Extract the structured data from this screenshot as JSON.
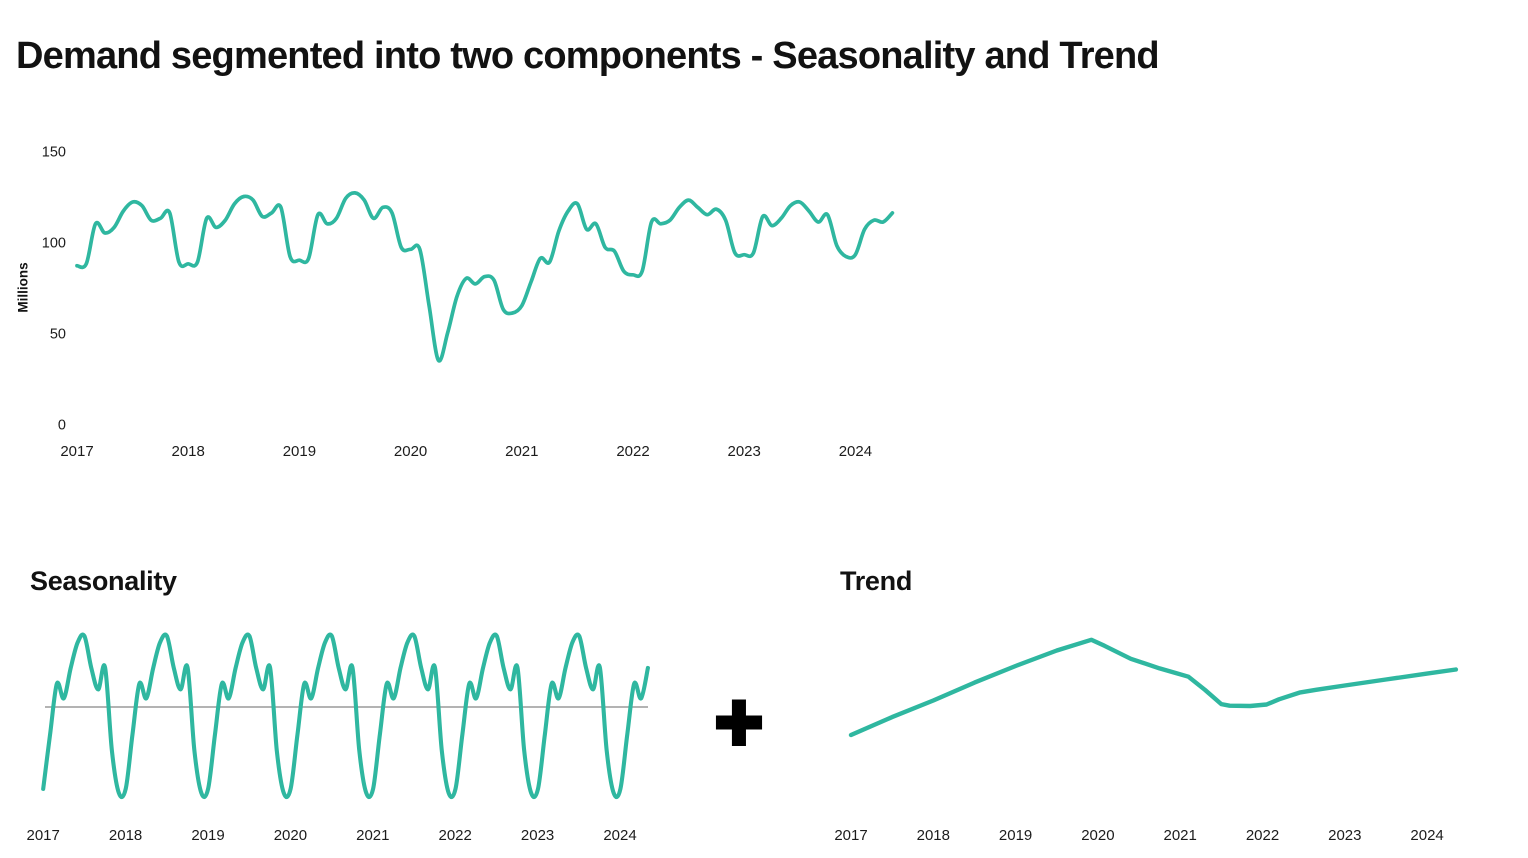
{
  "page": {
    "title": "Demand segmented into two components - Seasonality and Trend",
    "plus_sign": "+",
    "background": "#ffffff",
    "accent_color": "#2FB7A0",
    "text_color": "#121212"
  },
  "chart_data": [
    {
      "id": "demand",
      "type": "line",
      "title": "",
      "ylabel": "Millions",
      "frequency": "monthly",
      "start": "2017-01",
      "end": "2024-05",
      "ylim": [
        0,
        150
      ],
      "y_ticks": [
        0,
        50,
        100,
        150
      ],
      "x_tick_labels": [
        "2017",
        "2018",
        "2019",
        "2020",
        "2021",
        "2022",
        "2023",
        "2024"
      ],
      "grid": false,
      "legend": false,
      "line_color": "#2FB7A0",
      "values": [
        87,
        88,
        110,
        105,
        108,
        117,
        122,
        120,
        112,
        113,
        116,
        89,
        88,
        89,
        113,
        108,
        112,
        121,
        125,
        123,
        114,
        116,
        119,
        92,
        90,
        91,
        115,
        110,
        113,
        124,
        127,
        123,
        113,
        119,
        116,
        97,
        96,
        96,
        65,
        35,
        50,
        70,
        80,
        77,
        81,
        79,
        63,
        61,
        65,
        78,
        91,
        89,
        106,
        117,
        121,
        107,
        110,
        97,
        95,
        84,
        82,
        84,
        111,
        110,
        112,
        119,
        123,
        119,
        115,
        118,
        112,
        94,
        93,
        94,
        114,
        109,
        113,
        120,
        122,
        117,
        111,
        115,
        98,
        92,
        93,
        107,
        112,
        111,
        116
      ]
    },
    {
      "id": "seasonality",
      "type": "line",
      "title": "Seasonality",
      "frequency": "monthly",
      "start": "2017-01",
      "end": "2024-05",
      "n_months": 89,
      "unit": "relative seasonal deviation (no y-axis shown)",
      "monthly_pattern_jan_to_dec": [
        -21,
        -7,
        6,
        2.2,
        10,
        16.5,
        18.2,
        10,
        4.5,
        10.2,
        -11.2,
        -22
      ],
      "zero_line": true,
      "zero_line_color": "#b3b3b3",
      "x_tick_labels": [
        "2017",
        "2018",
        "2019",
        "2020",
        "2021",
        "2022",
        "2023",
        "2024"
      ],
      "line_color": "#2FB7A0"
    },
    {
      "id": "trend",
      "type": "line",
      "title": "Trend",
      "unit": "millions (approx., no y-axis shown)",
      "x_tick_labels": [
        "2017",
        "2018",
        "2019",
        "2020",
        "2021",
        "2022",
        "2023",
        "2024"
      ],
      "line_color": "#2FB7A0",
      "points": [
        [
          2017.0,
          88
        ],
        [
          2017.5,
          95.5
        ],
        [
          2018.0,
          102.5
        ],
        [
          2018.5,
          110
        ],
        [
          2019.0,
          117
        ],
        [
          2019.5,
          123.5
        ],
        [
          2019.92,
          128
        ],
        [
          2020.08,
          125.5
        ],
        [
          2020.4,
          120
        ],
        [
          2020.75,
          116
        ],
        [
          2020.95,
          114
        ],
        [
          2021.1,
          112.5
        ],
        [
          2021.3,
          107
        ],
        [
          2021.5,
          101
        ],
        [
          2021.6,
          100.3
        ],
        [
          2021.85,
          100.2
        ],
        [
          2022.05,
          100.8
        ],
        [
          2022.2,
          103
        ],
        [
          2022.45,
          105.8
        ],
        [
          2022.65,
          107
        ],
        [
          2023.0,
          108.8
        ],
        [
          2023.5,
          111.3
        ],
        [
          2024.0,
          113.8
        ],
        [
          2024.35,
          115.5
        ]
      ]
    }
  ]
}
